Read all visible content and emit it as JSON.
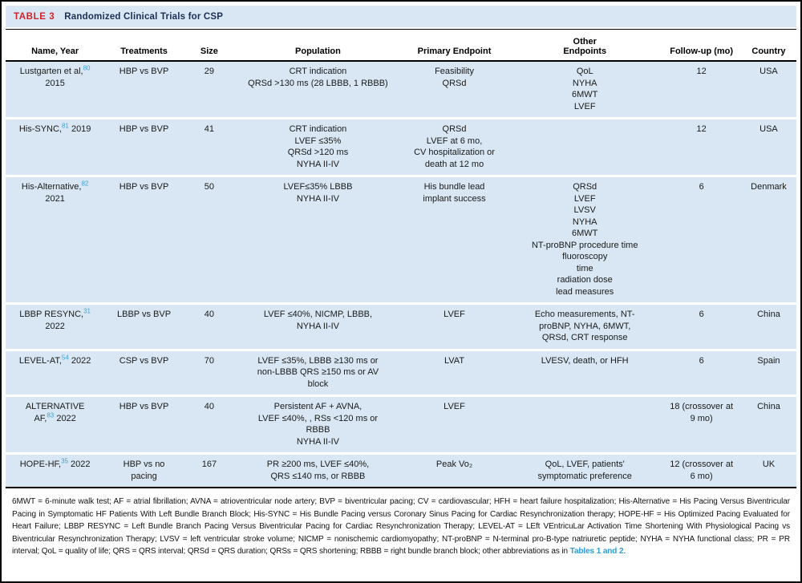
{
  "table": {
    "label": "TABLE 3",
    "title": "Randomized Clinical Trials for CSP",
    "columns": [
      "Name, Year",
      "Treatments",
      "Size",
      "Population",
      "Primary Endpoint",
      "Other\nEndpoints",
      "Follow-up (mo)",
      "Country"
    ],
    "rows": [
      {
        "name_lines": [
          {
            "text": "Lustgarten et al,",
            "sup": "80",
            "after": ""
          },
          {
            "text": "2015"
          }
        ],
        "treatments": [
          "HBP vs BVP"
        ],
        "size": "29",
        "population": [
          "CRT indication",
          "QRSd >130 ms (28 LBBB, 1 RBBB)"
        ],
        "primary_endpoint": [
          "Feasibility",
          "QRSd"
        ],
        "other_endpoints": [
          "QoL",
          "NYHA",
          "6MWT",
          "LVEF"
        ],
        "followup": [
          "12"
        ],
        "country": "USA"
      },
      {
        "name_lines": [
          {
            "text": "His-SYNC,",
            "sup": "81",
            "after": " 2019"
          }
        ],
        "treatments": [
          "HBP vs BVP"
        ],
        "size": "41",
        "population": [
          "CRT indication",
          "LVEF ≤35%",
          "QRSd >120 ms",
          "NYHA II-IV"
        ],
        "primary_endpoint": [
          "QRSd",
          "LVEF at 6 mo,",
          "CV hospitalization or",
          "death at 12 mo"
        ],
        "other_endpoints": [],
        "followup": [
          "12"
        ],
        "country": "USA"
      },
      {
        "name_lines": [
          {
            "text": "His-Alternative,",
            "sup": "82",
            "after": ""
          },
          {
            "text": "2021"
          }
        ],
        "treatments": [
          "HBP vs BVP"
        ],
        "size": "50",
        "population": [
          "LVEF≤35% LBBB",
          "NYHA II-IV"
        ],
        "primary_endpoint": [
          "His bundle lead",
          "implant success"
        ],
        "other_endpoints": [
          "QRSd",
          "LVEF",
          "LVSV",
          "NYHA",
          "6MWT",
          "NT-proBNP procedure time",
          "fluoroscopy",
          "time",
          "radiation dose",
          "lead measures"
        ],
        "followup": [
          "6"
        ],
        "country": "Denmark"
      },
      {
        "name_lines": [
          {
            "text": "LBBP RESYNC,",
            "sup": "31",
            "after": ""
          },
          {
            "text": "2022"
          }
        ],
        "treatments": [
          "LBBP vs BVP"
        ],
        "size": "40",
        "population": [
          "LVEF ≤40%, NICMP, LBBB,",
          "NYHA II-IV"
        ],
        "primary_endpoint": [
          "LVEF"
        ],
        "other_endpoints": [
          "Echo measurements, NT-",
          "proBNP, NYHA, 6MWT,",
          "QRSd, CRT response"
        ],
        "followup": [
          "6"
        ],
        "country": "China"
      },
      {
        "name_lines": [
          {
            "text": "LEVEL-AT,",
            "sup": "54",
            "after": " 2022"
          }
        ],
        "treatments": [
          "CSP vs BVP"
        ],
        "size": "70",
        "population": [
          "LVEF ≤35%, LBBB ≥130 ms or",
          "non-LBBB QRS ≥150 ms or AV",
          "block"
        ],
        "primary_endpoint": [
          "LVAT"
        ],
        "other_endpoints": [
          "LVESV, death, or HFH"
        ],
        "followup": [
          "6"
        ],
        "country": "Spain"
      },
      {
        "name_lines": [
          {
            "text": "ALTERNATIVE"
          },
          {
            "text": "AF,",
            "sup": "83",
            "after": " 2022"
          }
        ],
        "treatments": [
          "HBP vs BVP"
        ],
        "size": "40",
        "population": [
          "Persistent AF + AVNA,",
          "LVEF ≤40%, , RSs <120 ms or",
          "RBBB",
          "NYHA II-IV"
        ],
        "primary_endpoint": [
          "LVEF"
        ],
        "other_endpoints": [],
        "followup": [
          "18 (crossover at",
          "9 mo)"
        ],
        "country": "China"
      },
      {
        "name_lines": [
          {
            "text": "HOPE-HF,",
            "sup": "35",
            "after": " 2022"
          }
        ],
        "treatments": [
          "HBP vs no",
          "pacing"
        ],
        "size": "167",
        "population": [
          "PR ≥200 ms, LVEF ≤40%,",
          "QRS ≤140 ms, or RBBB"
        ],
        "primary_endpoint": [
          "Peak Vo₂"
        ],
        "other_endpoints": [
          "QoL, LVEF, patients'",
          "symptomatic preference"
        ],
        "followup": [
          "12 (crossover at",
          "6 mo)"
        ],
        "country": "UK"
      }
    ],
    "footnote": {
      "text": "6MWT = 6-minute walk test; AF = atrial fibrillation; AVNA = atrioventricular node artery; BVP = biventricular pacing; CV = cardiovascular; HFH = heart failure hospitalization; His-Alternative = His Pacing Versus Biventricular Pacing in Symptomatic HF Patients With Left Bundle Branch Block; His-SYNC = His Bundle Pacing versus Coronary Sinus Pacing for Cardiac Resynchronization therapy; HOPE-HF = His Optimized Pacing Evaluated for Heart Failure; LBBP RESYNC = Left Bundle Branch Pacing Versus Biventricular Pacing for Cardiac Resynchronization Therapy; LEVEL-AT = LEft VEntricuLar Activation Time Shortening With Physiological Pacing vs Biventricular Resynchronization Therapy; LVSV = left ventricular stroke volume; NICMP = nonischemic cardiomyopathy; NT-proBNP = N-terminal pro-B-type natriuretic peptide; NYHA = NYHA functional class; PR = PR interval; QoL = quality of life; QRS = QRS interval; QRSd = QRS duration; QRSs = QRS shortening; RBBB = right bundle branch block; other abbreviations as in ",
      "link": "Tables 1 and 2",
      "suffix": "."
    }
  }
}
